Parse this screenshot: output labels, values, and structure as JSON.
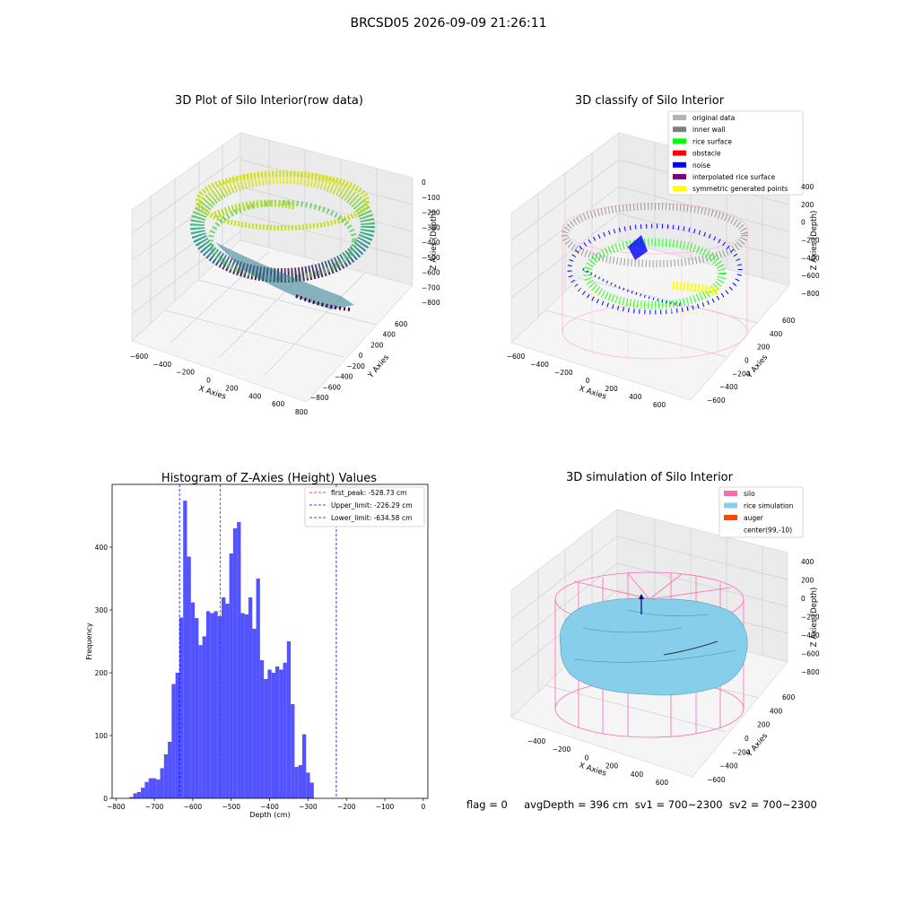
{
  "figure": {
    "suptitle": "BRCSD05 2026-09-09 21:26:11",
    "status_line": "flag = 0     avgDepth = 396 cm  sv1 = 700~2300  sv2 = 700~2300"
  },
  "colors": {
    "histogram_bar": "#4a4aff",
    "first_peak_line": "#ff0000",
    "limit_lines": "#0000ff",
    "silo_mesh": "#ff69b4",
    "rice_simulation": "#87ceeb",
    "auger": "#ff4500",
    "original_data": "#b3b3b3",
    "inner_wall": "#808080",
    "rice_surface": "#00ff00",
    "obstacle": "#ff0000",
    "noise": "#0000ff",
    "interpolated_rice_surface": "#800080",
    "symmetric_generated_points": "#ffff00"
  },
  "panels": {
    "raw": {
      "title": "3D Plot of Silo Interior(row data)",
      "xlabel": "X Axies",
      "ylabel": "Y Axies",
      "zlabel": "Z Axies (Depth)",
      "xticks": [
        "−600",
        "−400",
        "−200",
        "0",
        "200",
        "400",
        "600",
        "800"
      ],
      "yticks": [
        "600",
        "400",
        "200",
        "0",
        "−200",
        "−400",
        "−600",
        "−800"
      ],
      "zticks": [
        "0",
        "−100",
        "−200",
        "−300",
        "−400",
        "−500",
        "−600",
        "−700",
        "−800"
      ]
    },
    "classify": {
      "title": "3D classify of Silo Interior",
      "xlabel": "X Axies",
      "ylabel": "Y Axies",
      "zlabel": "Z Axies (Depth)",
      "xticks": [
        "−600",
        "−400",
        "−200",
        "0",
        "200",
        "400",
        "600"
      ],
      "yticks": [
        "600",
        "400",
        "200",
        "0",
        "−200",
        "−400",
        "−600"
      ],
      "zticks": [
        "400",
        "200",
        "0",
        "−200",
        "−400",
        "−600",
        "−800"
      ],
      "legend": [
        {
          "label": "original data",
          "color": "#b3b3b3"
        },
        {
          "label": "inner wall",
          "color": "#808080"
        },
        {
          "label": "rice surface",
          "color": "#00ff00"
        },
        {
          "label": "obstacle",
          "color": "#ff0000"
        },
        {
          "label": "noise",
          "color": "#0000ff"
        },
        {
          "label": "interpolated rice surface",
          "color": "#800080"
        },
        {
          "label": "symmetric generated points",
          "color": "#ffff00"
        }
      ]
    },
    "simulation": {
      "title": "3D simulation of Silo Interior",
      "xlabel": "X Axies",
      "ylabel": "Y Axies",
      "zlabel": "Z Axies (Depth)",
      "xticks": [
        "−400",
        "−200",
        "0",
        "200",
        "400",
        "600"
      ],
      "yticks": [
        "600",
        "400",
        "200",
        "0",
        "−200",
        "−400",
        "−600"
      ],
      "zticks": [
        "400",
        "200",
        "0",
        "−200",
        "−400",
        "−600",
        "−800"
      ],
      "legend": [
        {
          "label": "silo",
          "color": "#ff69b4"
        },
        {
          "label": "rice simulation",
          "color": "#87ceeb"
        },
        {
          "label": "auger",
          "color": "#ff4500"
        },
        {
          "label": "center(99,-10)",
          "color": ""
        }
      ]
    }
  },
  "chart_data": [
    {
      "type": "histogram",
      "title": "Histogram of Z-Axies (Height) Values",
      "xlabel": "Depth (cm)",
      "ylabel": "Frequency",
      "xlim": [
        -810,
        12
      ],
      "ylim": [
        0,
        500
      ],
      "xticks": [
        -800,
        -700,
        -600,
        -500,
        -400,
        -300,
        -200,
        -100,
        0
      ],
      "yticks": [
        0,
        100,
        200,
        300,
        400
      ],
      "bin_start": -765,
      "bin_width": 10,
      "values": [
        2,
        8,
        10,
        17,
        26,
        32,
        32,
        30,
        48,
        70,
        90,
        182,
        200,
        288,
        474,
        385,
        312,
        287,
        244,
        258,
        298,
        295,
        298,
        290,
        320,
        310,
        390,
        430,
        440,
        295,
        293,
        320,
        270,
        350,
        220,
        190,
        205,
        200,
        210,
        205,
        216,
        250,
        150,
        50,
        53,
        102,
        41,
        25
      ],
      "vlines": [
        {
          "label": "first_peak: -528.73 cm",
          "x": -528.73,
          "color": "#ff0000"
        },
        {
          "label": "Upper_limit: -226.29 cm",
          "x": -226.29,
          "color": "#0000ff"
        },
        {
          "label": "Lower_limit: -634.58 cm",
          "x": -634.58,
          "color": "#0000ff"
        }
      ]
    }
  ]
}
